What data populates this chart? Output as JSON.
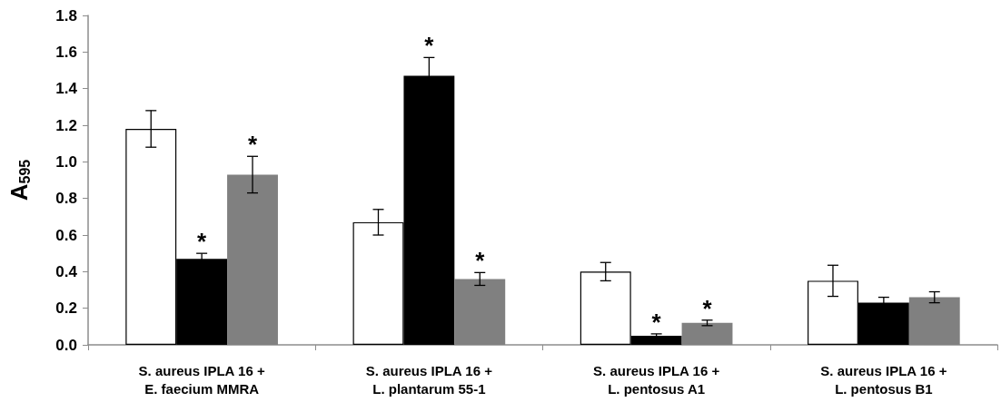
{
  "chart_data": {
    "type": "bar",
    "ylabel": "A$_{595}$",
    "categories": [
      "S. aureus IPLA 16 +\nE. faecium MMRA",
      "S. aureus IPLA 16 +\nL. plantarum 55-1",
      "S. aureus IPLA 16 +\nL. pentosus A1",
      "S. aureus IPLA 16 +\nL. pentosus B1"
    ],
    "series": [
      {
        "color": "#ffffff",
        "values": [
          1.18,
          0.67,
          0.4,
          0.35
        ],
        "errors": [
          0.1,
          0.07,
          0.05,
          0.085
        ]
      },
      {
        "color": "#000000",
        "values": [
          0.47,
          1.47,
          0.05,
          0.23
        ],
        "errors": [
          0.03,
          0.1,
          0.01,
          0.03
        ],
        "value_labels": [
          "*",
          "*",
          "*",
          null
        ]
      },
      {
        "color": "#808080",
        "values": [
          0.93,
          0.36,
          0.12,
          0.26
        ],
        "errors": [
          0.1,
          0.035,
          0.015,
          0.03
        ],
        "value_labels": [
          "*",
          "*",
          "*",
          null
        ]
      }
    ],
    "ylim": [
      0,
      1.8
    ],
    "yticks": [
      {
        "value": 0,
        "label": "0.0"
      },
      0.2,
      0.4,
      0.6,
      0.8,
      {
        "value": 1,
        "label": "1.0"
      },
      1.2,
      1.4,
      1.6,
      1.8
    ],
    "grid": false
  }
}
